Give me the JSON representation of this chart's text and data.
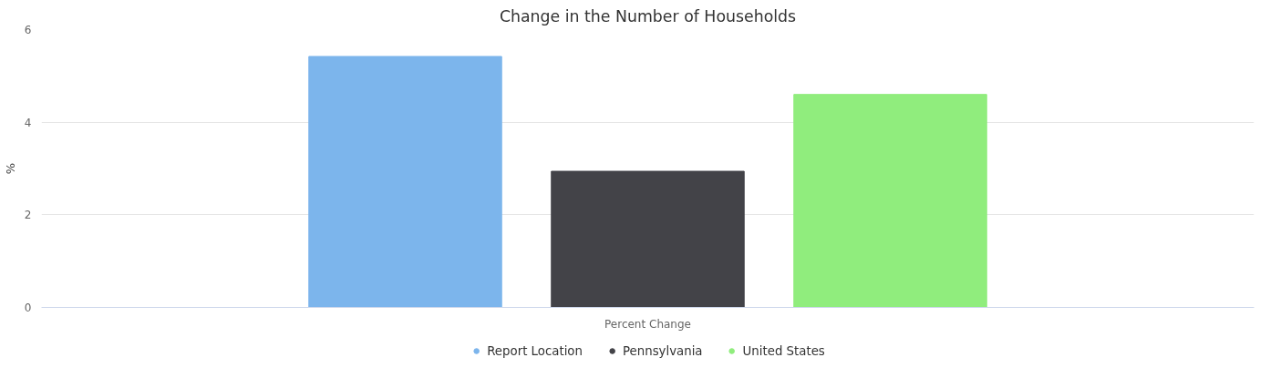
{
  "chart_data": {
    "type": "bar",
    "title": "Change in the Number of Households",
    "ylabel": "%",
    "categories": [
      "Percent Change"
    ],
    "series": [
      {
        "name": "Report Location",
        "color": "#7cb5ec",
        "values": [
          5.42
        ]
      },
      {
        "name": "Pennsylvania",
        "color": "#434348",
        "values": [
          2.94
        ]
      },
      {
        "name": "United States",
        "color": "#90ed7d",
        "values": [
          4.6
        ]
      }
    ],
    "ylim": [
      0,
      6
    ],
    "yticks": [
      0,
      2,
      4,
      6
    ],
    "grid": "y",
    "legend": "bottom"
  }
}
